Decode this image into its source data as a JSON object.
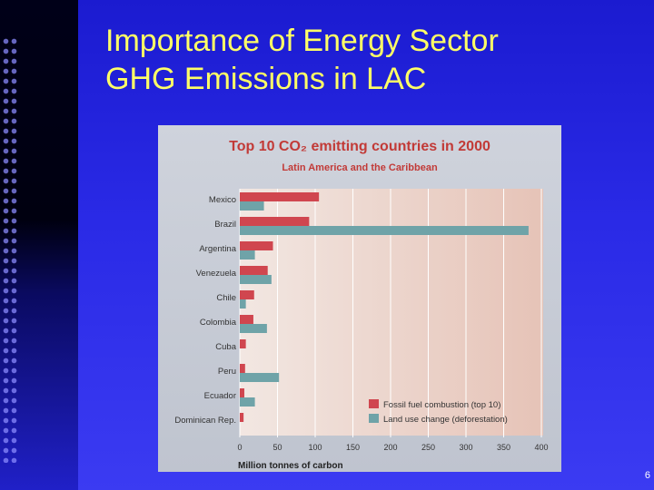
{
  "slide": {
    "title_line1": "Importance of Energy Sector",
    "title_line2": "GHG Emissions in LAC",
    "page_number": "6"
  },
  "chart_data": {
    "type": "bar",
    "orientation": "horizontal",
    "title": "Top 10 CO₂ emitting countries in 2000",
    "subtitle": "Latin America and the Caribbean",
    "xlabel": "Million tonnes of carbon",
    "ylabel": "",
    "xlim": [
      0,
      400
    ],
    "xticks": [
      0,
      50,
      100,
      150,
      200,
      250,
      300,
      350,
      400
    ],
    "categories": [
      "Mexico",
      "Brazil",
      "Argentina",
      "Venezuela",
      "Chile",
      "Colombia",
      "Cuba",
      "Peru",
      "Ecuador",
      "Dominican Rep."
    ],
    "series": [
      {
        "name": "Fossil fuel combustion (top 10)",
        "color": "#d0464f",
        "values": [
          105,
          92,
          44,
          37,
          19,
          18,
          8,
          7,
          6,
          5
        ]
      },
      {
        "name": "Land use change (deforestation)",
        "color": "#6fa3a8",
        "values": [
          32,
          383,
          20,
          42,
          8,
          36,
          0,
          52,
          20,
          0
        ]
      }
    ],
    "grid": "vertical",
    "legend_position": "bottom-right"
  }
}
